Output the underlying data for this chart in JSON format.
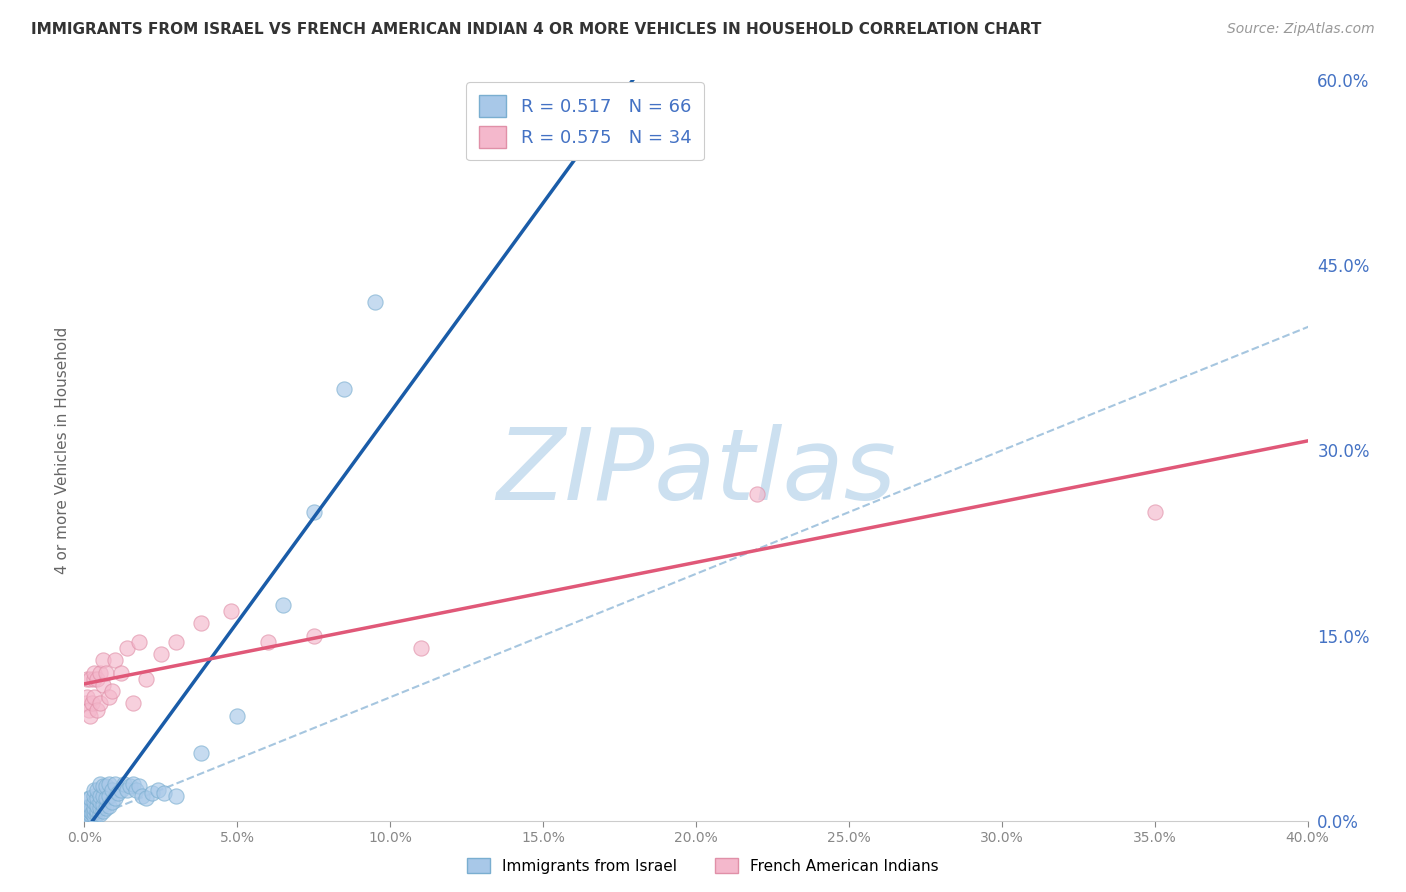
{
  "title": "IMMIGRANTS FROM ISRAEL VS FRENCH AMERICAN INDIAN 4 OR MORE VEHICLES IN HOUSEHOLD CORRELATION CHART",
  "source": "Source: ZipAtlas.com",
  "ylabel": "4 or more Vehicles in Household",
  "xlim": [
    0.0,
    0.4
  ],
  "ylim": [
    0.0,
    0.6
  ],
  "yticks_right": [
    0.0,
    0.15,
    0.3,
    0.45,
    0.6
  ],
  "xticks": [
    0.0,
    0.05,
    0.1,
    0.15,
    0.2,
    0.25,
    0.3,
    0.35,
    0.4
  ],
  "blue_R": 0.517,
  "blue_N": 66,
  "pink_R": 0.575,
  "pink_N": 34,
  "blue_scatter_color": "#a8c8e8",
  "blue_edge_color": "#7aaed0",
  "pink_scatter_color": "#f4b8cc",
  "pink_edge_color": "#e090a8",
  "blue_line_color": "#1a5ca8",
  "pink_line_color": "#e05878",
  "ref_line_color": "#90b8d8",
  "watermark_color": "#cce0f0",
  "grid_color": "#d8d8d8",
  "bg_color": "#ffffff",
  "tick_color": "#888888",
  "right_tick_color": "#4472C4",
  "title_color": "#333333",
  "source_color": "#999999",
  "ylabel_color": "#666666",
  "legend_text_color": "#4472C4",
  "legend_label_blue": "Immigrants from Israel",
  "legend_label_pink": "French American Indians",
  "blue_scatter_x": [
    0.0005,
    0.0007,
    0.001,
    0.001,
    0.001,
    0.0012,
    0.0013,
    0.0015,
    0.0015,
    0.0015,
    0.002,
    0.002,
    0.002,
    0.002,
    0.002,
    0.0025,
    0.003,
    0.003,
    0.003,
    0.003,
    0.003,
    0.003,
    0.004,
    0.004,
    0.004,
    0.004,
    0.004,
    0.005,
    0.005,
    0.005,
    0.005,
    0.005,
    0.006,
    0.006,
    0.006,
    0.006,
    0.007,
    0.007,
    0.007,
    0.008,
    0.008,
    0.008,
    0.009,
    0.009,
    0.01,
    0.01,
    0.011,
    0.012,
    0.013,
    0.014,
    0.015,
    0.016,
    0.017,
    0.018,
    0.019,
    0.02,
    0.022,
    0.024,
    0.026,
    0.03,
    0.038,
    0.05,
    0.065,
    0.075,
    0.085,
    0.095
  ],
  "blue_scatter_y": [
    0.005,
    0.008,
    0.003,
    0.006,
    0.01,
    0.004,
    0.008,
    0.005,
    0.012,
    0.018,
    0.003,
    0.005,
    0.008,
    0.012,
    0.018,
    0.006,
    0.004,
    0.007,
    0.01,
    0.015,
    0.02,
    0.025,
    0.005,
    0.008,
    0.012,
    0.018,
    0.025,
    0.005,
    0.01,
    0.015,
    0.02,
    0.03,
    0.008,
    0.013,
    0.02,
    0.028,
    0.01,
    0.018,
    0.028,
    0.012,
    0.02,
    0.03,
    0.015,
    0.025,
    0.018,
    0.03,
    0.022,
    0.025,
    0.03,
    0.025,
    0.028,
    0.03,
    0.025,
    0.028,
    0.02,
    0.018,
    0.022,
    0.025,
    0.022,
    0.02,
    0.055,
    0.085,
    0.175,
    0.25,
    0.35,
    0.42
  ],
  "pink_scatter_x": [
    0.0005,
    0.001,
    0.001,
    0.0015,
    0.002,
    0.002,
    0.0025,
    0.003,
    0.003,
    0.003,
    0.004,
    0.004,
    0.005,
    0.005,
    0.006,
    0.006,
    0.007,
    0.008,
    0.009,
    0.01,
    0.012,
    0.014,
    0.016,
    0.018,
    0.02,
    0.025,
    0.03,
    0.038,
    0.048,
    0.06,
    0.075,
    0.11,
    0.22,
    0.35
  ],
  "pink_scatter_y": [
    0.095,
    0.1,
    0.115,
    0.09,
    0.085,
    0.115,
    0.095,
    0.1,
    0.115,
    0.12,
    0.09,
    0.115,
    0.095,
    0.12,
    0.11,
    0.13,
    0.12,
    0.1,
    0.105,
    0.13,
    0.12,
    0.14,
    0.095,
    0.145,
    0.115,
    0.135,
    0.145,
    0.16,
    0.17,
    0.145,
    0.15,
    0.14,
    0.265,
    0.25
  ]
}
